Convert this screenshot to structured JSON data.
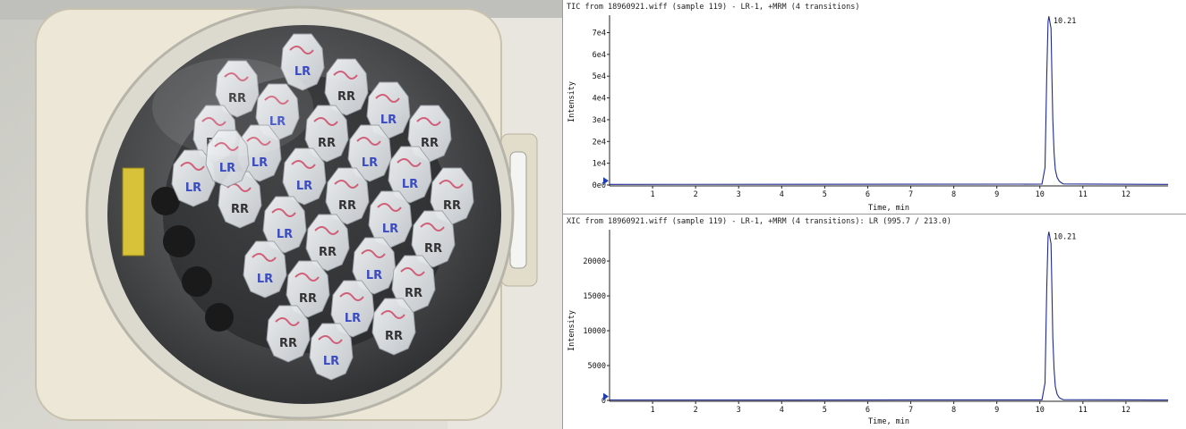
{
  "colors": {
    "trace": "#1f2b8f",
    "marker": "#1f3fb0",
    "axis": "#222222",
    "ink_blue": "#3b4cc0",
    "ink_red": "#d0607a",
    "ink_black": "#333333"
  },
  "photo": {
    "tube_labels": [
      "LR",
      "RR",
      "LR",
      "RR",
      "LR",
      "RR",
      "LR",
      "RR",
      "LR",
      "RR",
      "LR",
      "RR",
      "LR",
      "RR",
      "LR",
      "RR",
      "LR",
      "RR",
      "LR",
      "RR",
      "LR",
      "RR",
      "LR",
      "RR",
      "LR",
      "RR",
      "LR",
      "RR",
      "LR"
    ]
  },
  "chart_data": [
    {
      "type": "line",
      "title": "TIC from 18960921.wiff (sample 119) - LR-1, +MRM (4 transitions)",
      "xlabel": "Time, min",
      "ylabel": "Intensity",
      "xlim": [
        0,
        12.98
      ],
      "ylim": [
        0,
        78000
      ],
      "x_ticks": [
        1,
        2,
        3,
        4,
        5,
        6,
        7,
        8,
        9,
        10,
        11,
        12
      ],
      "y_ticks": [
        {
          "v": 0,
          "label": "0e0"
        },
        {
          "v": 10000,
          "label": "1e4"
        },
        {
          "v": 20000,
          "label": "2e4"
        },
        {
          "v": 30000,
          "label": "3e4"
        },
        {
          "v": 40000,
          "label": "4e4"
        },
        {
          "v": 50000,
          "label": "5e4"
        },
        {
          "v": 60000,
          "label": "6e4"
        },
        {
          "v": 70000,
          "label": "7e4"
        }
      ],
      "peak_label": "10.21",
      "series": [
        {
          "x": [
            0,
            10.05,
            10.12,
            10.16,
            10.19,
            10.21,
            10.26,
            10.28,
            10.3,
            10.33,
            10.36,
            10.4,
            10.45,
            10.5,
            10.55,
            12.98
          ],
          "y": [
            300,
            400,
            8000,
            50000,
            75000,
            77500,
            72000,
            50000,
            30000,
            15000,
            7000,
            3500,
            1800,
            1000,
            500,
            300
          ]
        }
      ]
    },
    {
      "type": "line",
      "title": "XIC from 18960921.wiff (sample 119) - LR-1, +MRM (4 transitions): LR (995.7 / 213.0)",
      "xlabel": "Time, min",
      "ylabel": "Intensity",
      "xlim": [
        0,
        12.98
      ],
      "ylim": [
        0,
        24500
      ],
      "x_ticks": [
        1,
        2,
        3,
        4,
        5,
        6,
        7,
        8,
        9,
        10,
        11,
        12
      ],
      "y_ticks": [
        {
          "v": 0,
          "label": "0"
        },
        {
          "v": 5000,
          "label": "5000"
        },
        {
          "v": 10000,
          "label": "10000"
        },
        {
          "v": 15000,
          "label": "15000"
        },
        {
          "v": 20000,
          "label": "20000"
        }
      ],
      "peak_label": "10.21",
      "series": [
        {
          "x": [
            0,
            10.05,
            10.12,
            10.16,
            10.19,
            10.21,
            10.26,
            10.28,
            10.3,
            10.33,
            10.36,
            10.4,
            10.45,
            10.5,
            10.55,
            12.98
          ],
          "y": [
            50,
            80,
            2500,
            16000,
            23500,
            24200,
            22500,
            16000,
            9000,
            4500,
            2000,
            900,
            400,
            200,
            100,
            50
          ]
        }
      ]
    }
  ]
}
